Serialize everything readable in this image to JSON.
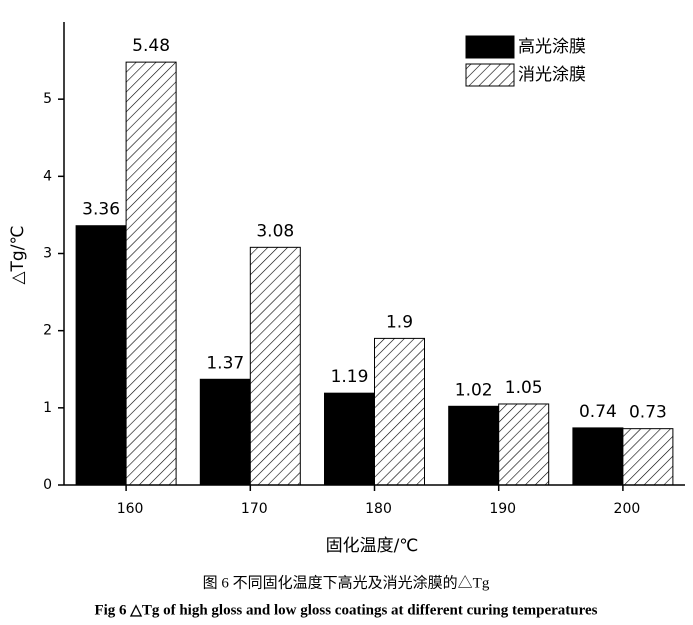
{
  "chart_data": {
    "type": "bar",
    "x_label": "固化温度/℃",
    "y_label": "△Tg/℃",
    "categories": [
      "160",
      "170",
      "180",
      "190",
      "200"
    ],
    "series": [
      {
        "name": "高光涂膜",
        "color": "#000000",
        "values": [
          3.36,
          1.37,
          1.19,
          1.02,
          0.74
        ]
      },
      {
        "name": "消光涂膜",
        "color": "#000000",
        "hatch": true,
        "values": [
          5.48,
          3.08,
          1.9,
          1.05,
          0.73
        ]
      }
    ],
    "ylim": [
      0,
      6
    ],
    "yticks": [
      0,
      1,
      2,
      3,
      4,
      5
    ],
    "legend": "upper right"
  },
  "caption": {
    "zh": "图 6  不同固化温度下高光及消光涂膜的△Tg",
    "en": "Fig 6  △Tg of high gloss and low gloss coatings at different curing temperatures"
  }
}
